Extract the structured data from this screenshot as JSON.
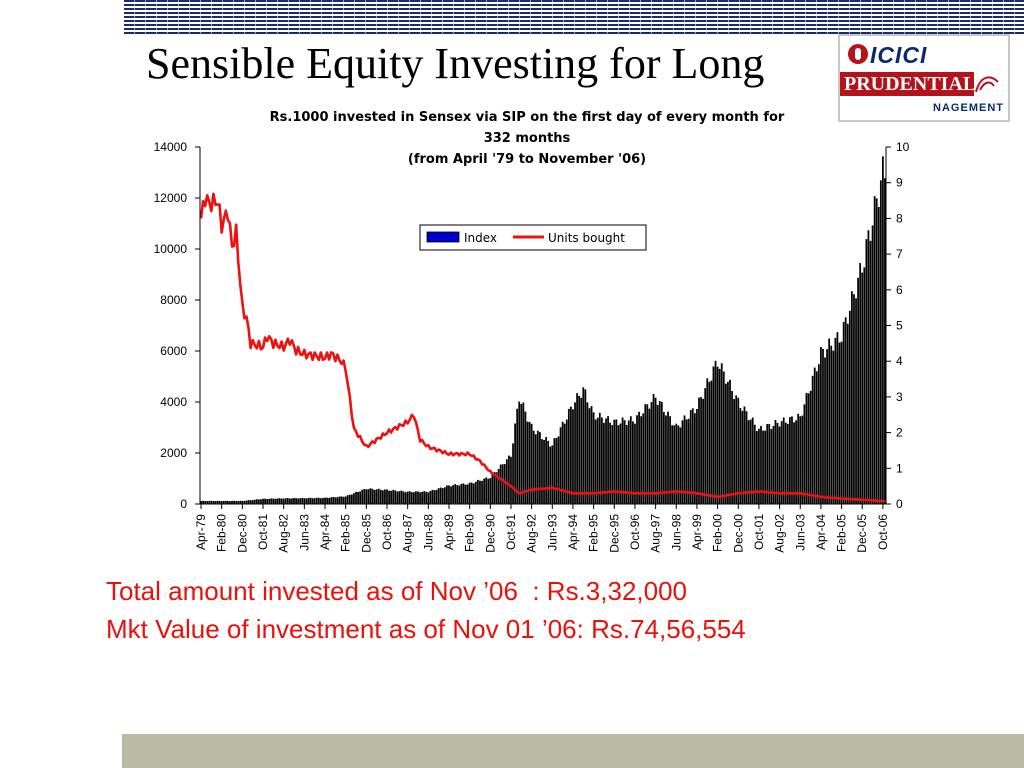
{
  "slide": {
    "title": "Sensible Equity Investing for Long",
    "logo": {
      "top_text": "ICICI",
      "middle_text": "PRUDENTIAL",
      "bottom_text": "NAGEMENT",
      "brand_red": "#b5121b",
      "brand_blue": "#0a2a6c"
    },
    "summary": {
      "line1": "Total amount invested as of Nov ’06  : Rs.3,32,000",
      "line2": "Mkt Value of investment as of Nov 01 ’06: Rs.74,56,554"
    },
    "colors": {
      "summary_text": "#e8120c",
      "bottom_bar": "#b9bca3",
      "stripes": "#1b2a6b"
    }
  },
  "chart_data": {
    "type": "bar",
    "title_lines": [
      "Rs.1000 invested in Sensex via SIP on the first day of every month for",
      "332 months",
      "(from April '79 to November '06)"
    ],
    "x_tick_labels": [
      "Apr-79",
      "Feb-80",
      "Dec-80",
      "Oct-81",
      "Aug-82",
      "Jun-83",
      "Apr-84",
      "Feb-85",
      "Dec-85",
      "Oct-86",
      "Aug-87",
      "Jun-88",
      "Apr-89",
      "Feb-90",
      "Dec-90",
      "Oct-91",
      "Aug-92",
      "Jun-93",
      "Apr-94",
      "Feb-95",
      "Dec-95",
      "Oct-96",
      "Aug-97",
      "Jun-98",
      "Apr-99",
      "Feb-00",
      "Dec-00",
      "Oct-01",
      "Aug-02",
      "Jun-03",
      "Apr-04",
      "Feb-05",
      "Dec-05",
      "Oct-06"
    ],
    "y_left": {
      "ticks": [
        0,
        2000,
        4000,
        6000,
        8000,
        10000,
        12000,
        14000
      ],
      "lim": [
        0,
        14000
      ]
    },
    "y_right": {
      "ticks": [
        0,
        1,
        2,
        3,
        4,
        5,
        6,
        7,
        8,
        9,
        10
      ],
      "lim": [
        0,
        10
      ]
    },
    "legend": {
      "placement": "top-center",
      "entries": [
        "Index",
        "Units bought"
      ]
    },
    "series": [
      {
        "name": "Index",
        "axis": "left",
        "kind": "bar",
        "color": "#000000",
        "legend_color": "#0000cc",
        "anchors": [
          [
            "Apr-79",
            120
          ],
          [
            "Feb-80",
            120
          ],
          [
            "Dec-80",
            120
          ],
          [
            "Oct-81",
            200
          ],
          [
            "Aug-82",
            220
          ],
          [
            "Jun-83",
            230
          ],
          [
            "Apr-84",
            240
          ],
          [
            "Feb-85",
            300
          ],
          [
            "Dec-85",
            600
          ],
          [
            "Oct-86",
            550
          ],
          [
            "Aug-87",
            480
          ],
          [
            "Jun-88",
            480
          ],
          [
            "Apr-89",
            720
          ],
          [
            "Feb-90",
            800
          ],
          [
            "Dec-90",
            1050
          ],
          [
            "Oct-91",
            1900
          ],
          [
            "Feb-92",
            4200
          ],
          [
            "Aug-92",
            3000
          ],
          [
            "Jun-93",
            2300
          ],
          [
            "Apr-94",
            3900
          ],
          [
            "Sep-94",
            4500
          ],
          [
            "Feb-95",
            3500
          ],
          [
            "Dec-95",
            3200
          ],
          [
            "Oct-96",
            3300
          ],
          [
            "Aug-97",
            4200
          ],
          [
            "Jun-98",
            3000
          ],
          [
            "Apr-99",
            3800
          ],
          [
            "Feb-00",
            5600
          ],
          [
            "Dec-00",
            4000
          ],
          [
            "Oct-01",
            2900
          ],
          [
            "Aug-02",
            3200
          ],
          [
            "Jun-03",
            3400
          ],
          [
            "Apr-04",
            5900
          ],
          [
            "Feb-05",
            6600
          ],
          [
            "Dec-05",
            9300
          ],
          [
            "Oct-06",
            13000
          ]
        ]
      },
      {
        "name": "Units bought",
        "axis": "right",
        "kind": "line",
        "color": "#ee1111",
        "anchors": [
          [
            "Apr-79",
            8.0
          ],
          [
            "Jun-79",
            8.6
          ],
          [
            "Aug-79",
            8.4
          ],
          [
            "Dec-79",
            8.5
          ],
          [
            "Feb-80",
            7.8
          ],
          [
            "May-80",
            8.2
          ],
          [
            "Jul-80",
            7.2
          ],
          [
            "Sep-80",
            7.6
          ],
          [
            "Dec-80",
            5.5
          ],
          [
            "Feb-81",
            5.2
          ],
          [
            "Apr-81",
            4.5
          ],
          [
            "Oct-81",
            4.4
          ],
          [
            "Dec-81",
            4.7
          ],
          [
            "Mar-82",
            4.5
          ],
          [
            "Aug-82",
            4.4
          ],
          [
            "Nov-82",
            4.6
          ],
          [
            "Feb-83",
            4.3
          ],
          [
            "Jun-83",
            4.2
          ],
          [
            "Apr-84",
            4.1
          ],
          [
            "Jul-84",
            4.2
          ],
          [
            "Dec-84",
            4.0
          ],
          [
            "Feb-85",
            3.8
          ],
          [
            "Jun-85",
            2.1
          ],
          [
            "Dec-85",
            1.6
          ],
          [
            "May-86",
            1.8
          ],
          [
            "Oct-86",
            2.0
          ],
          [
            "Aug-87",
            2.3
          ],
          [
            "Nov-87",
            2.5
          ],
          [
            "Feb-88",
            1.8
          ],
          [
            "Jun-88",
            1.6
          ],
          [
            "Apr-89",
            1.4
          ],
          [
            "Feb-90",
            1.4
          ],
          [
            "Jul-90",
            1.2
          ],
          [
            "Dec-90",
            0.9
          ],
          [
            "Oct-91",
            0.5
          ],
          [
            "Feb-92",
            0.3
          ],
          [
            "Aug-92",
            0.4
          ],
          [
            "Jun-93",
            0.45
          ],
          [
            "Apr-94",
            0.3
          ],
          [
            "Feb-95",
            0.3
          ],
          [
            "Dec-95",
            0.35
          ],
          [
            "Oct-96",
            0.3
          ],
          [
            "Aug-97",
            0.3
          ],
          [
            "Jun-98",
            0.35
          ],
          [
            "Apr-99",
            0.3
          ],
          [
            "Feb-00",
            0.2
          ],
          [
            "Dec-00",
            0.3
          ],
          [
            "Oct-01",
            0.35
          ],
          [
            "Aug-02",
            0.3
          ],
          [
            "Jun-03",
            0.3
          ],
          [
            "Apr-04",
            0.2
          ],
          [
            "Feb-05",
            0.15
          ],
          [
            "Dec-05",
            0.12
          ],
          [
            "Oct-06",
            0.08
          ]
        ]
      }
    ]
  }
}
